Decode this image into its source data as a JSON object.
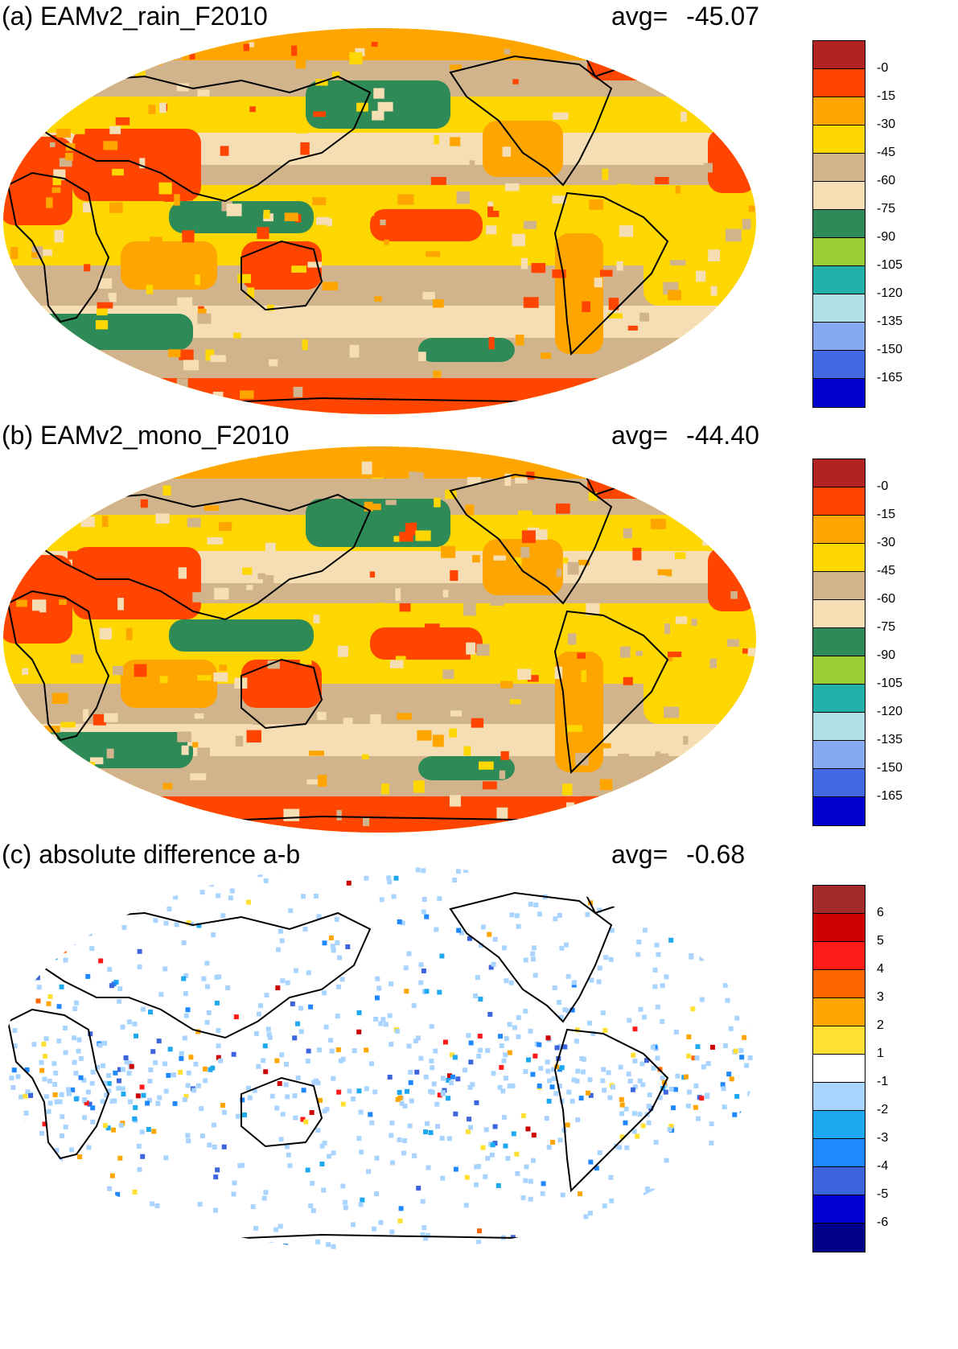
{
  "panels": [
    {
      "id": "a",
      "title": "(a) EAMv2_rain_F2010",
      "avg_label": "avg=",
      "avg_value": "-45.07",
      "colorbar": {
        "colors": [
          "#b22222",
          "#ff4500",
          "#ffa500",
          "#ffd700",
          "#d2b48c",
          "#f5deb3",
          "#2e8b57",
          "#9acd32",
          "#20b2aa",
          "#b0e0e6",
          "#87a9f0",
          "#4169e1",
          "#0000cd"
        ],
        "labels": [
          "-0",
          "-15",
          "-30",
          "-45",
          "-60",
          "-75",
          "-90",
          "-105",
          "-120",
          "-135",
          "-150",
          "-165"
        ]
      }
    },
    {
      "id": "b",
      "title": "(b) EAMv2_mono_F2010",
      "avg_label": "avg=",
      "avg_value": "-44.40",
      "colorbar": {
        "colors": [
          "#b22222",
          "#ff4500",
          "#ffa500",
          "#ffd700",
          "#d2b48c",
          "#f5deb3",
          "#2e8b57",
          "#9acd32",
          "#20b2aa",
          "#b0e0e6",
          "#87a9f0",
          "#4169e1",
          "#0000cd"
        ],
        "labels": [
          "-0",
          "-15",
          "-30",
          "-45",
          "-60",
          "-75",
          "-90",
          "-105",
          "-120",
          "-135",
          "-150",
          "-165"
        ]
      }
    },
    {
      "id": "c",
      "title": "(c) absolute difference a-b",
      "avg_label": "avg=",
      "avg_value": "-0.68",
      "colorbar": {
        "colors": [
          "#a52a2a",
          "#cd0000",
          "#ff1a1a",
          "#ff6600",
          "#ffa500",
          "#ffe033",
          "#ffffff",
          "#a8d4ff",
          "#1ea8f0",
          "#2088ff",
          "#3c64dc",
          "#0000d0",
          "#00008b"
        ],
        "labels": [
          "6",
          "5",
          "4",
          "3",
          "2",
          "1",
          "-1",
          "-2",
          "-3",
          "-4",
          "-5",
          "-6"
        ]
      }
    }
  ]
}
